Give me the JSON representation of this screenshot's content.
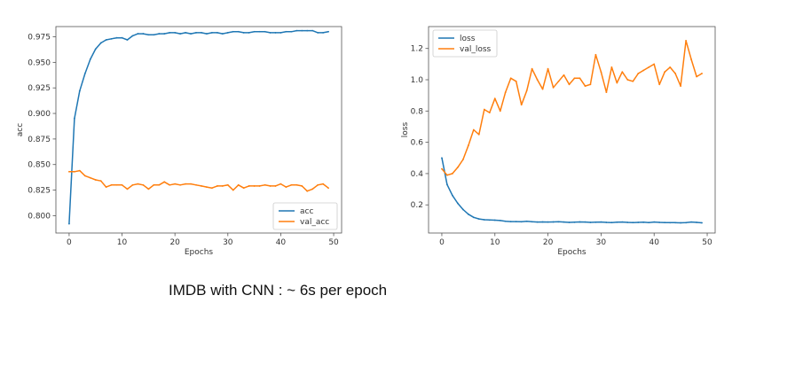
{
  "caption": "IMDB with CNN : ~ 6s per epoch",
  "colors": {
    "series1": "#1f77b4",
    "series2": "#ff7f0e"
  },
  "chart_data": [
    {
      "type": "line",
      "xlabel": "Epochs",
      "ylabel": "acc",
      "xlim": [
        -2.5,
        51.5
      ],
      "ylim": [
        0.783,
        0.985
      ],
      "xticks": [
        0,
        10,
        20,
        30,
        40,
        50
      ],
      "yticks": [
        0.8,
        0.825,
        0.85,
        0.875,
        0.9,
        0.925,
        0.95,
        0.975
      ],
      "ytick_labels": [
        "0.800",
        "0.825",
        "0.850",
        "0.875",
        "0.900",
        "0.925",
        "0.950",
        "0.975"
      ],
      "legend": "bottom-right",
      "x": [
        0,
        1,
        2,
        3,
        4,
        5,
        6,
        7,
        8,
        9,
        10,
        11,
        12,
        13,
        14,
        15,
        16,
        17,
        18,
        19,
        20,
        21,
        22,
        23,
        24,
        25,
        26,
        27,
        28,
        29,
        30,
        31,
        32,
        33,
        34,
        35,
        36,
        37,
        38,
        39,
        40,
        41,
        42,
        43,
        44,
        45,
        46,
        47,
        48,
        49
      ],
      "series": [
        {
          "name": "acc",
          "color": "#1f77b4",
          "values": [
            0.792,
            0.895,
            0.922,
            0.939,
            0.953,
            0.963,
            0.969,
            0.972,
            0.973,
            0.974,
            0.974,
            0.972,
            0.976,
            0.978,
            0.978,
            0.977,
            0.977,
            0.978,
            0.978,
            0.979,
            0.979,
            0.978,
            0.979,
            0.978,
            0.979,
            0.979,
            0.978,
            0.979,
            0.979,
            0.978,
            0.979,
            0.98,
            0.98,
            0.979,
            0.979,
            0.98,
            0.98,
            0.98,
            0.979,
            0.979,
            0.979,
            0.98,
            0.98,
            0.981,
            0.981,
            0.981,
            0.981,
            0.979,
            0.979,
            0.98
          ]
        },
        {
          "name": "val_acc",
          "color": "#ff7f0e",
          "values": [
            0.843,
            0.843,
            0.844,
            0.839,
            0.837,
            0.835,
            0.834,
            0.828,
            0.83,
            0.83,
            0.83,
            0.826,
            0.83,
            0.831,
            0.83,
            0.826,
            0.83,
            0.83,
            0.833,
            0.83,
            0.831,
            0.83,
            0.831,
            0.831,
            0.83,
            0.829,
            0.828,
            0.827,
            0.829,
            0.829,
            0.83,
            0.825,
            0.83,
            0.827,
            0.829,
            0.829,
            0.829,
            0.83,
            0.829,
            0.829,
            0.831,
            0.828,
            0.83,
            0.83,
            0.829,
            0.824,
            0.826,
            0.83,
            0.831,
            0.827
          ]
        }
      ]
    },
    {
      "type": "line",
      "xlabel": "Epochs",
      "ylabel": "loss",
      "xlim": [
        -2.5,
        51.5
      ],
      "ylim": [
        0.02,
        1.34
      ],
      "xticks": [
        0,
        10,
        20,
        30,
        40,
        50
      ],
      "yticks": [
        0.2,
        0.4,
        0.6,
        0.8,
        1.0,
        1.2
      ],
      "ytick_labels": [
        "0.2",
        "0.4",
        "0.6",
        "0.8",
        "1.0",
        "1.2"
      ],
      "legend": "top-left",
      "x": [
        0,
        1,
        2,
        3,
        4,
        5,
        6,
        7,
        8,
        9,
        10,
        11,
        12,
        13,
        14,
        15,
        16,
        17,
        18,
        19,
        20,
        21,
        22,
        23,
        24,
        25,
        26,
        27,
        28,
        29,
        30,
        31,
        32,
        33,
        34,
        35,
        36,
        37,
        38,
        39,
        40,
        41,
        42,
        43,
        44,
        45,
        46,
        47,
        48,
        49
      ],
      "series": [
        {
          "name": "loss",
          "color": "#1f77b4",
          "values": [
            0.5,
            0.33,
            0.26,
            0.21,
            0.17,
            0.14,
            0.12,
            0.11,
            0.105,
            0.103,
            0.102,
            0.1,
            0.095,
            0.093,
            0.093,
            0.092,
            0.095,
            0.092,
            0.09,
            0.091,
            0.09,
            0.091,
            0.092,
            0.09,
            0.088,
            0.089,
            0.091,
            0.09,
            0.088,
            0.089,
            0.09,
            0.088,
            0.087,
            0.089,
            0.09,
            0.088,
            0.087,
            0.088,
            0.089,
            0.087,
            0.09,
            0.088,
            0.087,
            0.086,
            0.086,
            0.085,
            0.086,
            0.09,
            0.088,
            0.085
          ]
        },
        {
          "name": "val_loss",
          "color": "#ff7f0e",
          "values": [
            0.43,
            0.39,
            0.4,
            0.44,
            0.49,
            0.58,
            0.68,
            0.65,
            0.81,
            0.79,
            0.88,
            0.8,
            0.92,
            1.01,
            0.99,
            0.84,
            0.93,
            1.07,
            1.0,
            0.94,
            1.07,
            0.95,
            0.99,
            1.03,
            0.97,
            1.01,
            1.01,
            0.96,
            0.97,
            1.16,
            1.05,
            0.92,
            1.08,
            0.98,
            1.05,
            1.0,
            0.99,
            1.04,
            1.06,
            1.08,
            1.1,
            0.97,
            1.05,
            1.08,
            1.04,
            0.96,
            1.25,
            1.13,
            1.02,
            1.04
          ]
        }
      ]
    }
  ]
}
